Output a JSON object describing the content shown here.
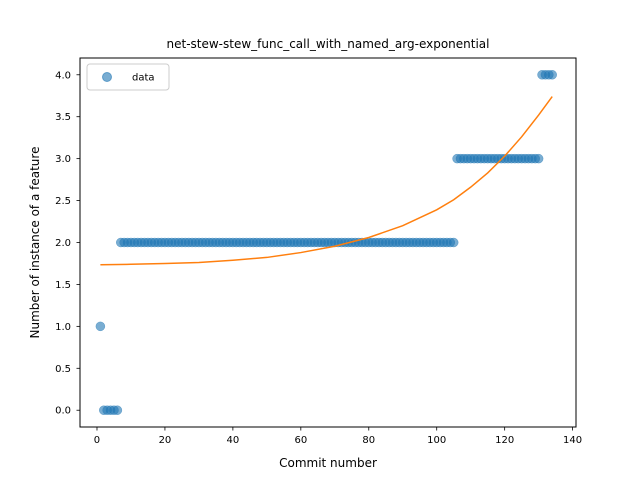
{
  "chart_data": {
    "type": "scatter",
    "title": "net-stew-stew_func_call_with_named_arg-exponential",
    "xlabel": "Commit number",
    "ylabel": "Number of instance of a feature",
    "xlim": [
      -5,
      141
    ],
    "ylim": [
      -0.2,
      4.2
    ],
    "xticks": [
      0,
      20,
      40,
      60,
      80,
      100,
      120,
      140
    ],
    "yticks": [
      0.0,
      0.5,
      1.0,
      1.5,
      2.0,
      2.5,
      3.0,
      3.5,
      4.0
    ],
    "grid": false,
    "legend": {
      "placement": "upper-left",
      "entries": [
        "data"
      ]
    },
    "colors": {
      "data": "#1f77b4",
      "fit": "#ff7f0e"
    },
    "series": [
      {
        "name": "data",
        "kind": "scatter",
        "points": [
          [
            1,
            1
          ],
          [
            2,
            0
          ],
          [
            3,
            0
          ],
          [
            4,
            0
          ],
          [
            5,
            0
          ],
          [
            6,
            0
          ],
          [
            7,
            2
          ],
          [
            8,
            2
          ],
          [
            9,
            2
          ],
          [
            10,
            2
          ],
          [
            11,
            2
          ],
          [
            12,
            2
          ],
          [
            13,
            2
          ],
          [
            14,
            2
          ],
          [
            15,
            2
          ],
          [
            16,
            2
          ],
          [
            17,
            2
          ],
          [
            18,
            2
          ],
          [
            19,
            2
          ],
          [
            20,
            2
          ],
          [
            21,
            2
          ],
          [
            22,
            2
          ],
          [
            23,
            2
          ],
          [
            24,
            2
          ],
          [
            25,
            2
          ],
          [
            26,
            2
          ],
          [
            27,
            2
          ],
          [
            28,
            2
          ],
          [
            29,
            2
          ],
          [
            30,
            2
          ],
          [
            31,
            2
          ],
          [
            32,
            2
          ],
          [
            33,
            2
          ],
          [
            34,
            2
          ],
          [
            35,
            2
          ],
          [
            36,
            2
          ],
          [
            37,
            2
          ],
          [
            38,
            2
          ],
          [
            39,
            2
          ],
          [
            40,
            2
          ],
          [
            41,
            2
          ],
          [
            42,
            2
          ],
          [
            43,
            2
          ],
          [
            44,
            2
          ],
          [
            45,
            2
          ],
          [
            46,
            2
          ],
          [
            47,
            2
          ],
          [
            48,
            2
          ],
          [
            49,
            2
          ],
          [
            50,
            2
          ],
          [
            51,
            2
          ],
          [
            52,
            2
          ],
          [
            53,
            2
          ],
          [
            54,
            2
          ],
          [
            55,
            2
          ],
          [
            56,
            2
          ],
          [
            57,
            2
          ],
          [
            58,
            2
          ],
          [
            59,
            2
          ],
          [
            60,
            2
          ],
          [
            61,
            2
          ],
          [
            62,
            2
          ],
          [
            63,
            2
          ],
          [
            64,
            2
          ],
          [
            65,
            2
          ],
          [
            66,
            2
          ],
          [
            67,
            2
          ],
          [
            68,
            2
          ],
          [
            69,
            2
          ],
          [
            70,
            2
          ],
          [
            71,
            2
          ],
          [
            72,
            2
          ],
          [
            73,
            2
          ],
          [
            74,
            2
          ],
          [
            75,
            2
          ],
          [
            76,
            2
          ],
          [
            77,
            2
          ],
          [
            78,
            2
          ],
          [
            79,
            2
          ],
          [
            80,
            2
          ],
          [
            81,
            2
          ],
          [
            82,
            2
          ],
          [
            83,
            2
          ],
          [
            84,
            2
          ],
          [
            85,
            2
          ],
          [
            86,
            2
          ],
          [
            87,
            2
          ],
          [
            88,
            2
          ],
          [
            89,
            2
          ],
          [
            90,
            2
          ],
          [
            91,
            2
          ],
          [
            92,
            2
          ],
          [
            93,
            2
          ],
          [
            94,
            2
          ],
          [
            95,
            2
          ],
          [
            96,
            2
          ],
          [
            97,
            2
          ],
          [
            98,
            2
          ],
          [
            99,
            2
          ],
          [
            100,
            2
          ],
          [
            101,
            2
          ],
          [
            102,
            2
          ],
          [
            103,
            2
          ],
          [
            104,
            2
          ],
          [
            105,
            2
          ],
          [
            106,
            3
          ],
          [
            107,
            3
          ],
          [
            108,
            3
          ],
          [
            109,
            3
          ],
          [
            110,
            3
          ],
          [
            111,
            3
          ],
          [
            112,
            3
          ],
          [
            113,
            3
          ],
          [
            114,
            3
          ],
          [
            115,
            3
          ],
          [
            116,
            3
          ],
          [
            117,
            3
          ],
          [
            118,
            3
          ],
          [
            119,
            3
          ],
          [
            120,
            3
          ],
          [
            121,
            3
          ],
          [
            122,
            3
          ],
          [
            123,
            3
          ],
          [
            124,
            3
          ],
          [
            125,
            3
          ],
          [
            126,
            3
          ],
          [
            127,
            3
          ],
          [
            128,
            3
          ],
          [
            129,
            3
          ],
          [
            130,
            3
          ],
          [
            131,
            4
          ],
          [
            132,
            4
          ],
          [
            133,
            4
          ],
          [
            134,
            4
          ]
        ]
      },
      {
        "kind": "line",
        "points": [
          [
            1,
            1.735
          ],
          [
            10,
            1.74
          ],
          [
            20,
            1.749
          ],
          [
            30,
            1.762
          ],
          [
            40,
            1.788
          ],
          [
            50,
            1.822
          ],
          [
            60,
            1.88
          ],
          [
            70,
            1.955
          ],
          [
            80,
            2.06
          ],
          [
            90,
            2.2
          ],
          [
            100,
            2.39
          ],
          [
            105,
            2.51
          ],
          [
            110,
            2.66
          ],
          [
            115,
            2.83
          ],
          [
            120,
            3.03
          ],
          [
            125,
            3.26
          ],
          [
            130,
            3.52
          ],
          [
            134,
            3.74
          ]
        ]
      }
    ]
  }
}
